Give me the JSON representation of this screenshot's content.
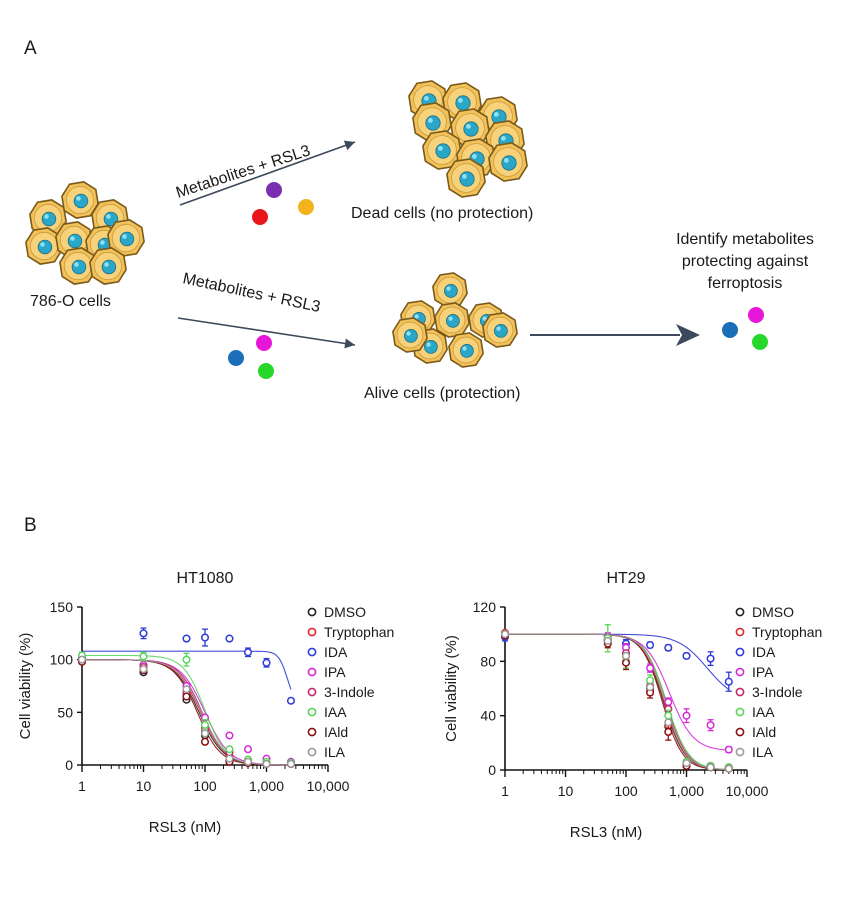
{
  "panel_a": {
    "letter": "A",
    "start_label": "786-O cells",
    "arrow_top_label": "Metabolites + RSL3",
    "arrow_bottom_label": "Metabolites + RSL3",
    "dead_label": "Dead cells (no protection)",
    "alive_label": "Alive cells (protection)",
    "result_line1": "Identify metabolites",
    "result_line2": "protecting against",
    "result_line3": "ferroptosis",
    "colors": {
      "purple": "#7a2fb0",
      "red": "#e8151b",
      "yellow": "#f2b31c",
      "magenta": "#e617d8",
      "blue": "#1b6fb8",
      "green": "#27d82a",
      "cell_fill": "#f2c15a",
      "cell_stroke": "#7a5a1a",
      "nucleus": "#2aa7c8",
      "arrow": "#3d4a5c"
    }
  },
  "panel_b": {
    "letter": "B",
    "legend": [
      {
        "name": "DMSO",
        "color": "#222222"
      },
      {
        "name": "Tryptophan",
        "color": "#d62828"
      },
      {
        "name": "IDA",
        "color": "#2f3bd6"
      },
      {
        "name": "IPA",
        "color": "#d42bd6"
      },
      {
        "name": "3-Indole",
        "color": "#c2286a"
      },
      {
        "name": "IAA",
        "color": "#59d659"
      },
      {
        "name": "IAld",
        "color": "#8b1010"
      },
      {
        "name": "ILA",
        "color": "#9a9a9a"
      }
    ]
  },
  "chart_data": [
    {
      "type": "scatter",
      "title": "HT1080",
      "xlabel": "RSL3 (nM)",
      "ylabel": "Cell viability (%)",
      "xscale": "log",
      "xlim": [
        1,
        10000
      ],
      "ylim": [
        0,
        150
      ],
      "xticks": [
        1,
        10,
        100,
        1000,
        10000
      ],
      "xtick_labels": [
        "1",
        "10",
        "100",
        "1,000",
        "10,000"
      ],
      "yticks": [
        0,
        50,
        100,
        150
      ],
      "ytick_labels": [
        "0",
        "50",
        "100",
        "150"
      ],
      "x": [
        1,
        10,
        50,
        100,
        250,
        500,
        1000,
        2500
      ],
      "series": [
        {
          "name": "DMSO",
          "values": [
            100,
            88,
            62,
            28,
            4,
            2,
            1,
            1
          ],
          "fit": {
            "top": 100,
            "bottom": 0,
            "ec50": 80,
            "hill": 2.2
          }
        },
        {
          "name": "Tryptophan",
          "values": [
            101,
            92,
            70,
            32,
            8,
            3,
            2,
            1
          ],
          "fit": {
            "top": 100,
            "bottom": 0,
            "ec50": 85,
            "hill": 2.2
          }
        },
        {
          "name": "IDA",
          "values": [
            102,
            125,
            120,
            121,
            120,
            107,
            97,
            61
          ],
          "err": [
            4,
            5,
            0,
            8,
            0,
            4,
            4,
            0
          ],
          "fit": {
            "top": 108,
            "bottom": 55,
            "ec50": 2200,
            "hill": 6
          }
        },
        {
          "name": "IPA",
          "values": [
            100,
            95,
            75,
            45,
            28,
            15,
            6,
            3
          ],
          "fit": {
            "top": 100,
            "bottom": 0,
            "ec50": 100,
            "hill": 2.2
          }
        },
        {
          "name": "3-Indole",
          "values": [
            99,
            93,
            68,
            35,
            12,
            5,
            2,
            1
          ],
          "fit": {
            "top": 100,
            "bottom": 0,
            "ec50": 90,
            "hill": 2.3
          }
        },
        {
          "name": "IAA",
          "values": [
            104,
            103,
            100,
            38,
            15,
            5,
            3,
            2
          ],
          "err": [
            3,
            4,
            6,
            5,
            0,
            0,
            0,
            0
          ],
          "fit": {
            "top": 104,
            "bottom": 0,
            "ec50": 100,
            "hill": 2.5
          }
        },
        {
          "name": "IAld",
          "values": [
            98,
            90,
            65,
            22,
            3,
            2,
            1,
            1
          ],
          "fit": {
            "top": 100,
            "bottom": 0,
            "ec50": 75,
            "hill": 2.3
          }
        },
        {
          "name": "ILA",
          "values": [
            100,
            91,
            72,
            30,
            6,
            3,
            1,
            1
          ],
          "fit": {
            "top": 100,
            "bottom": 0,
            "ec50": 88,
            "hill": 2.2
          }
        }
      ]
    },
    {
      "type": "scatter",
      "title": "HT29",
      "xlabel": "RSL3 (nM)",
      "ylabel": "Cell viability (%)",
      "xscale": "log",
      "xlim": [
        1,
        10000
      ],
      "ylim": [
        0,
        120
      ],
      "xticks": [
        1,
        10,
        100,
        1000,
        10000
      ],
      "xtick_labels": [
        "1",
        "10",
        "100",
        "1,000",
        "10,000"
      ],
      "yticks": [
        0,
        40,
        80,
        120
      ],
      "ytick_labels": [
        "0",
        "40",
        "80",
        "120"
      ],
      "x": [
        1,
        50,
        100,
        250,
        500,
        1000,
        2500,
        5000
      ],
      "series": [
        {
          "name": "DMSO",
          "values": [
            100,
            95,
            85,
            60,
            32,
            4,
            2,
            1
          ],
          "fit": {
            "top": 100,
            "bottom": 0,
            "ec50": 420,
            "hill": 2.5
          }
        },
        {
          "name": "Tryptophan",
          "values": [
            101,
            94,
            84,
            58,
            33,
            3,
            2,
            1
          ],
          "fit": {
            "top": 100,
            "bottom": 0,
            "ec50": 430,
            "hill": 2.5
          }
        },
        {
          "name": "IDA",
          "values": [
            98,
            96,
            93,
            92,
            90,
            84,
            82,
            65
          ],
          "err": [
            3,
            2,
            3,
            2,
            2,
            2,
            5,
            7
          ],
          "fit": {
            "top": 100,
            "bottom": 50,
            "ec50": 2200,
            "hill": 1.8
          }
        },
        {
          "name": "IPA",
          "values": [
            100,
            98,
            90,
            75,
            50,
            40,
            33,
            15
          ],
          "err": [
            2,
            3,
            3,
            3,
            3,
            5,
            4,
            2
          ],
          "fit": {
            "top": 100,
            "bottom": 14,
            "ec50": 520,
            "hill": 2.2
          }
        },
        {
          "name": "3-Indole",
          "values": [
            99,
            96,
            86,
            62,
            45,
            5,
            3,
            2
          ],
          "fit": {
            "top": 100,
            "bottom": 0,
            "ec50": 460,
            "hill": 2.5
          }
        },
        {
          "name": "IAA",
          "values": [
            100,
            97,
            80,
            66,
            40,
            6,
            3,
            2
          ],
          "err": [
            2,
            10,
            5,
            4,
            4,
            2,
            0,
            0
          ],
          "fit": {
            "top": 100,
            "bottom": 0,
            "ec50": 470,
            "hill": 2.4
          }
        },
        {
          "name": "IAld",
          "values": [
            99,
            93,
            79,
            57,
            28,
            3,
            2,
            1
          ],
          "err": [
            2,
            3,
            5,
            4,
            6,
            2,
            0,
            0
          ],
          "fit": {
            "top": 100,
            "bottom": 0,
            "ec50": 400,
            "hill": 2.6
          }
        },
        {
          "name": "ILA",
          "values": [
            100,
            95,
            84,
            61,
            35,
            5,
            2,
            1
          ],
          "fit": {
            "top": 100,
            "bottom": 0,
            "ec50": 440,
            "hill": 2.5
          }
        }
      ]
    }
  ]
}
